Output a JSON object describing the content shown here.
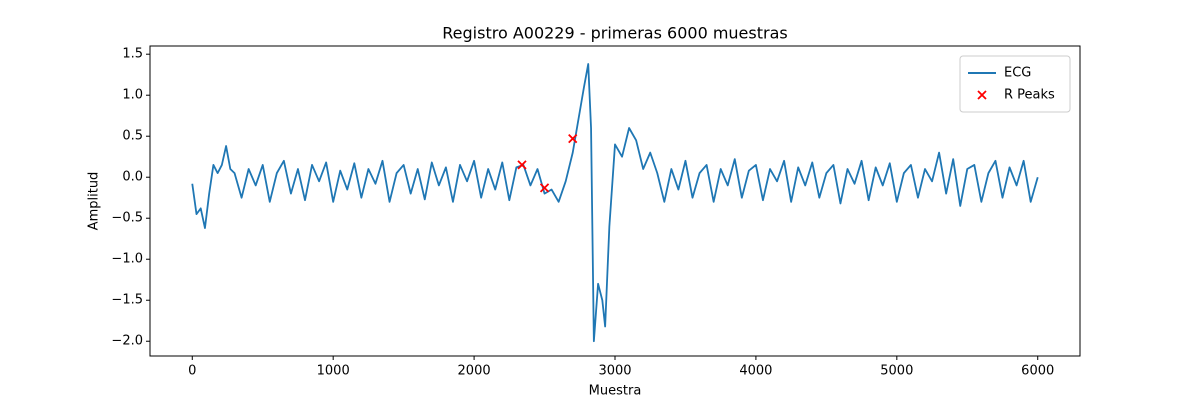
{
  "chart_data": {
    "type": "line",
    "title": "Registro A00229 - primeras 6000 muestras",
    "xlabel": "Muestra",
    "ylabel": "Amplitud",
    "xlim": [
      -300,
      6300
    ],
    "ylim": [
      -2.18,
      1.6
    ],
    "xticks": [
      0,
      1000,
      2000,
      3000,
      4000,
      5000,
      6000
    ],
    "yticks": [
      {
        "value": -2,
        "label": "−2.0"
      },
      {
        "value": -1.5,
        "label": "−1.5"
      },
      {
        "value": -1,
        "label": "−1.0"
      },
      {
        "value": -0.5,
        "label": "−0.5"
      },
      {
        "value": 0,
        "label": "0.0"
      },
      0.5,
      {
        "value": 1,
        "label": "1.0"
      },
      1.5
    ],
    "legend": "upper right",
    "series": [
      {
        "name": "ECG",
        "type": "line",
        "color": "#1f77b4",
        "x": [
          0,
          30,
          60,
          90,
          120,
          150,
          180,
          210,
          240,
          270,
          300,
          350,
          400,
          450,
          500,
          550,
          600,
          650,
          700,
          750,
          800,
          850,
          900,
          950,
          1000,
          1050,
          1100,
          1150,
          1200,
          1250,
          1300,
          1350,
          1400,
          1450,
          1500,
          1550,
          1600,
          1650,
          1700,
          1750,
          1800,
          1850,
          1900,
          1950,
          2000,
          2050,
          2100,
          2150,
          2200,
          2250,
          2300,
          2350,
          2400,
          2450,
          2500,
          2550,
          2600,
          2650,
          2700,
          2750,
          2780,
          2810,
          2830,
          2850,
          2880,
          2910,
          2930,
          2960,
          3000,
          3050,
          3100,
          3150,
          3200,
          3250,
          3300,
          3350,
          3400,
          3450,
          3500,
          3550,
          3600,
          3650,
          3700,
          3750,
          3800,
          3850,
          3900,
          3950,
          4000,
          4050,
          4100,
          4150,
          4200,
          4250,
          4300,
          4350,
          4400,
          4450,
          4500,
          4550,
          4600,
          4650,
          4700,
          4750,
          4800,
          4850,
          4900,
          4950,
          5000,
          5050,
          5100,
          5150,
          5200,
          5250,
          5300,
          5350,
          5400,
          5450,
          5500,
          5550,
          5600,
          5650,
          5700,
          5750,
          5800,
          5850,
          5900,
          5950,
          6000
        ],
        "values": [
          -0.08,
          -0.45,
          -0.38,
          -0.62,
          -0.2,
          0.15,
          0.05,
          0.15,
          0.38,
          0.1,
          0.05,
          -0.25,
          0.1,
          -0.1,
          0.15,
          -0.3,
          0.05,
          0.2,
          -0.2,
          0.1,
          -0.28,
          0.15,
          -0.05,
          0.18,
          -0.3,
          0.08,
          -0.15,
          0.17,
          -0.25,
          0.1,
          -0.08,
          0.2,
          -0.3,
          0.05,
          0.15,
          -0.2,
          0.1,
          -0.27,
          0.18,
          -0.1,
          0.12,
          -0.3,
          0.15,
          -0.05,
          0.2,
          -0.25,
          0.1,
          -0.15,
          0.18,
          -0.28,
          0.12,
          0.15,
          -0.1,
          0.1,
          -0.2,
          -0.15,
          -0.3,
          -0.05,
          0.3,
          0.8,
          1.1,
          1.38,
          0.6,
          -2.0,
          -1.3,
          -1.5,
          -1.82,
          -0.6,
          0.4,
          0.25,
          0.6,
          0.45,
          0.1,
          0.3,
          0.05,
          -0.3,
          0.1,
          -0.15,
          0.2,
          -0.25,
          0.05,
          0.15,
          -0.3,
          0.1,
          -0.1,
          0.22,
          -0.25,
          0.08,
          0.15,
          -0.28,
          0.1,
          -0.05,
          0.2,
          -0.3,
          0.12,
          -0.1,
          0.18,
          -0.25,
          0.05,
          0.15,
          -0.32,
          0.1,
          -0.08,
          0.2,
          -0.28,
          0.12,
          -0.1,
          0.17,
          -0.3,
          0.05,
          0.15,
          -0.25,
          0.1,
          -0.05,
          0.3,
          -0.2,
          0.22,
          -0.35,
          0.1,
          0.15,
          -0.3,
          0.05,
          0.2,
          -0.25,
          0.12,
          -0.1,
          0.2,
          -0.3,
          0.0
        ]
      },
      {
        "name": "R Peaks",
        "type": "scatter",
        "color": "#ff0000",
        "marker": "x",
        "x": [
          2340,
          2500,
          2700
        ],
        "values": [
          0.15,
          -0.13,
          0.47
        ]
      }
    ]
  }
}
